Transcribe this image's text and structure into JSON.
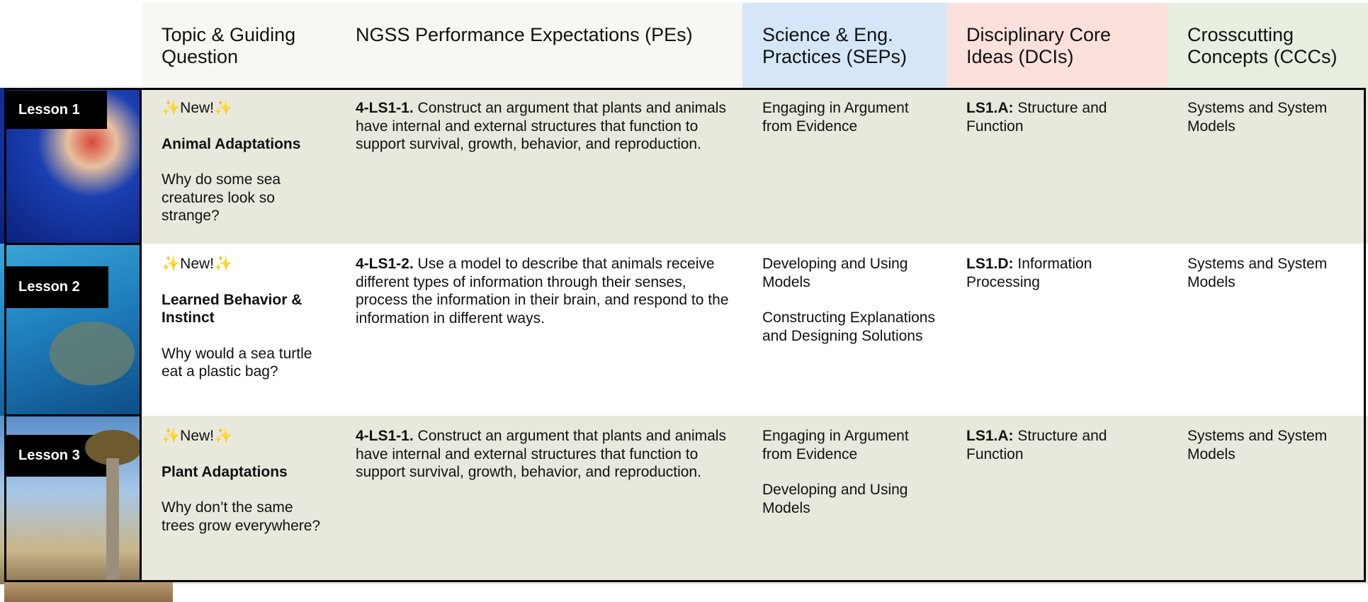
{
  "header": {
    "columns": [
      "Topic & Guiding Question",
      "NGSS Performance Expectations (PEs)",
      "Science & Eng. Practices (SEPs)",
      "Disciplinary Core Ideas (DCIs)",
      "Crosscutting Concepts (CCCs)"
    ]
  },
  "rows": [
    {
      "lesson": "Lesson 1",
      "badge": "✨New!✨",
      "topic": "Animal Adaptations",
      "question": "Why do some sea creatures look so strange?",
      "pe_code": "4-LS1-1.",
      "pe_text": "Construct an argument that plants and animals have internal and external structures that function to support survival, growth, behavior, and reproduction.",
      "seps": [
        "Engaging in Argument from Evidence"
      ],
      "dci_code": "LS1.A:",
      "dci_text": "Structure and Function",
      "ccc": "Systems and System Models"
    },
    {
      "lesson": "Lesson 2",
      "badge": "✨New!✨",
      "topic": "Learned Behavior & Instinct",
      "question": "Why would a sea turtle eat a plastic bag?",
      "pe_code": "4-LS1-2.",
      "pe_text": "Use a model to describe that animals receive different types of information through their senses, process the information in their brain, and respond to the information in different ways.",
      "seps": [
        "Developing and Using Models",
        "Constructing Explanations and Designing Solutions"
      ],
      "dci_code": "LS1.D:",
      "dci_text": "Information Processing",
      "ccc": "Systems and System Models"
    },
    {
      "lesson": "Lesson 3",
      "badge": "✨New!✨",
      "topic": "Plant Adaptations",
      "question": "Why don’t the same trees grow everywhere?",
      "pe_code": "4-LS1-1.",
      "pe_text": "Construct an argument that plants and animals have internal and external structures that function to support survival, growth, behavior, and reproduction.",
      "seps": [
        "Engaging in Argument from Evidence",
        "Developing and Using Models"
      ],
      "dci_code": "LS1.A:",
      "dci_text": "Structure and Function",
      "ccc": "Systems and System Models"
    }
  ]
}
